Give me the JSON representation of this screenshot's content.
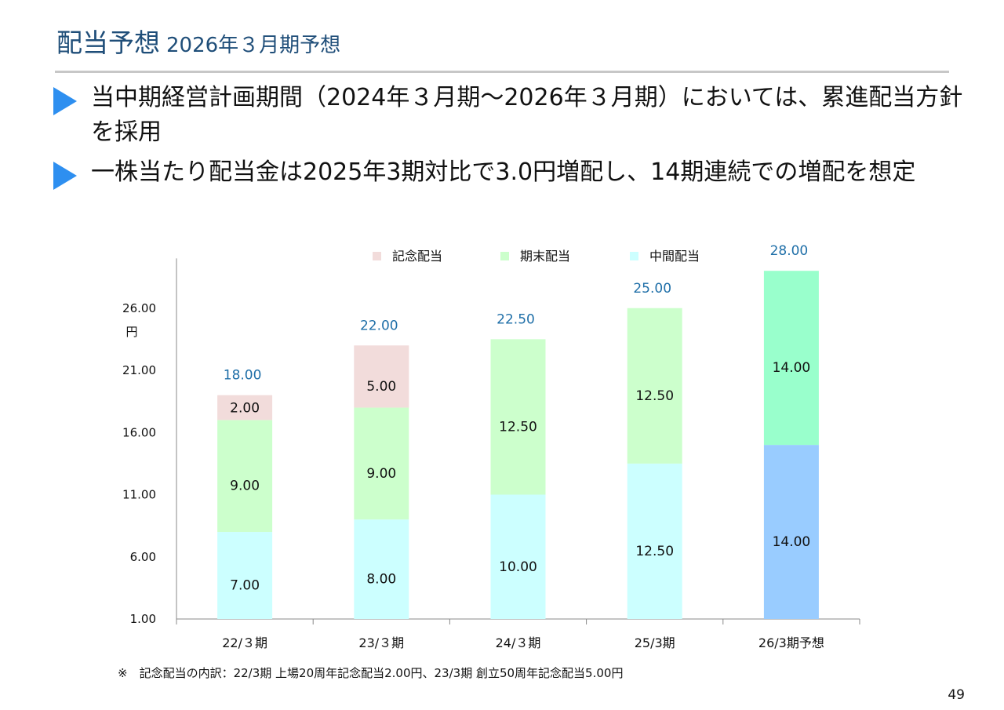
{
  "header": {
    "title": "配当予想",
    "subtitle": "2026年３月期予想"
  },
  "bullets": [
    "当中期経営計画期間（2024年３月期～2026年３月期）においては、累進配当方針を採用",
    "一株当たり配当金は2025年3期対比で3.0円増配し、14期連続での増配を想定"
  ],
  "footnote": "※　記念配当の内訳：22/3期 上場20周年記念配当2.00円、23/3期 創立50周年記念配当5.00円",
  "page_number": "49",
  "chart_data": {
    "type": "bar",
    "stacked": true,
    "categories": [
      "22/３期",
      "23/３期",
      "24/３期",
      "25/3期",
      "26/3期予想"
    ],
    "ylabel": "円",
    "ylim": [
      1,
      30
    ],
    "yticks": [
      1,
      6,
      11,
      16,
      21,
      26
    ],
    "ytick_labels": [
      "1.00",
      "6.00",
      "11.00",
      "16.00",
      "21.00",
      "26.00"
    ],
    "legend_position": "top",
    "series": [
      {
        "name": "中間配当",
        "values": [
          7,
          8,
          10,
          12.5,
          14
        ],
        "labels": [
          "7.00",
          "8.00",
          "10.00",
          "12.50",
          "14.00"
        ],
        "color": "#ccffff",
        "forecast_color": "#99ccff"
      },
      {
        "name": "期末配当",
        "values": [
          9,
          9,
          12.5,
          12.5,
          14
        ],
        "labels": [
          "9.00",
          "9.00",
          "12.50",
          "12.50",
          "14.00"
        ],
        "color": "#ccffcc",
        "forecast_color": "#99ffcc"
      },
      {
        "name": "記念配当",
        "values": [
          2,
          5,
          0,
          0,
          0
        ],
        "labels": [
          "2.00",
          "5.00",
          "",
          "",
          ""
        ],
        "color": "#f2dcdb"
      }
    ],
    "totals": [
      18,
      22,
      22.5,
      25,
      28
    ],
    "total_labels": [
      "18.00",
      "22.00",
      "22.50",
      "25.00",
      "28.00"
    ],
    "total_label_color": "#1f6fa8"
  }
}
